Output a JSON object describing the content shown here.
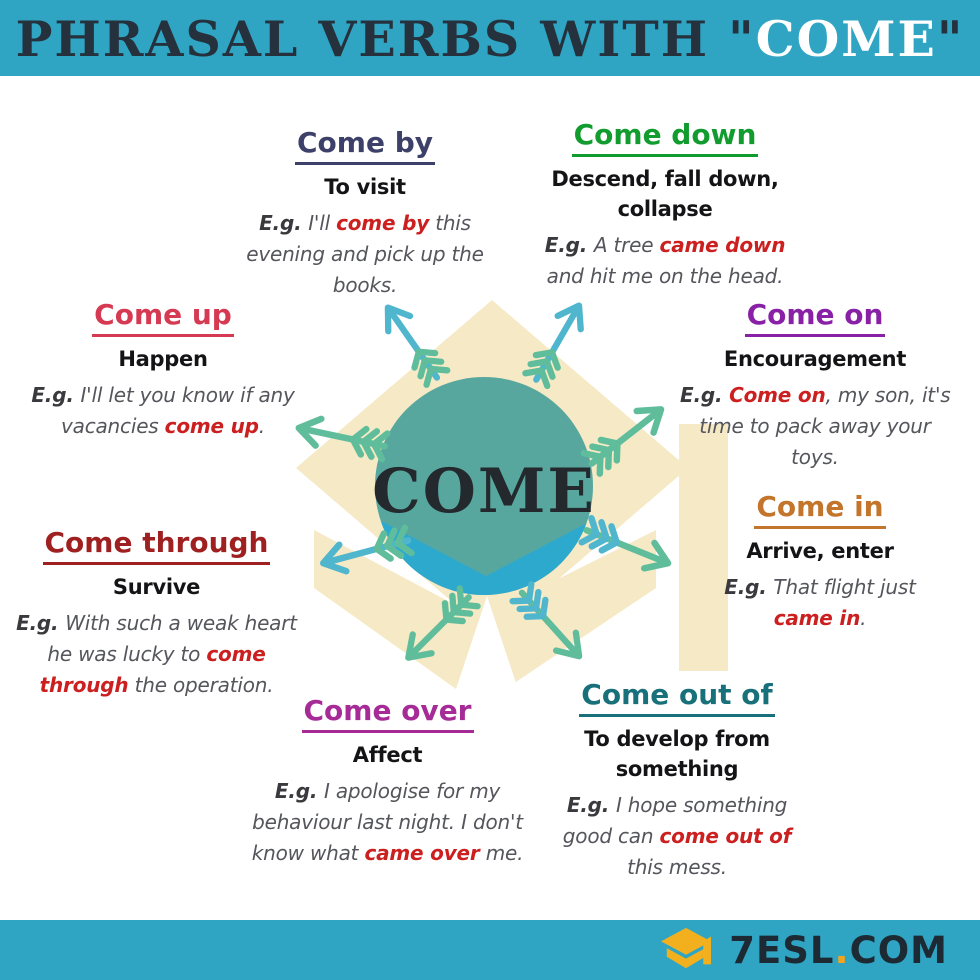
{
  "header": {
    "background": "#2fa5c3",
    "title_parts": [
      {
        "text": "PHRASAL VERBS WITH ",
        "color": "dark"
      },
      {
        "text": "\"",
        "color": "dark"
      },
      {
        "text": "COME",
        "color": "white"
      },
      {
        "text": "\"",
        "color": "dark"
      }
    ]
  },
  "center": {
    "label": "COME",
    "circle_color": "#58a79f",
    "chevron_color": "#2ea9ce",
    "watermark_color": "#f6e9c5",
    "arrow_teal": "#4fb6ce",
    "arrow_green": "#5fbd9b",
    "label_color": "#24292e",
    "graphic": "graduation-cap-watermark-with-radiating-arrows"
  },
  "sections": [
    {
      "id": "come-by",
      "title": "Come by",
      "title_color": "#3d4169",
      "definition_lines": [
        "To visit"
      ],
      "example_lines": [
        [
          {
            "t": "E.g. ",
            "s": "eg"
          },
          {
            "t": "I'll ",
            "s": "n"
          },
          {
            "t": "come by",
            "s": "hl"
          },
          {
            "t": " this",
            "s": "n"
          }
        ],
        [
          {
            "t": "evening and pick up the",
            "s": "n"
          }
        ],
        [
          {
            "t": "books.",
            "s": "n"
          }
        ]
      ]
    },
    {
      "id": "come-down",
      "title": "Come down",
      "title_color": "#129c2f",
      "definition_lines": [
        "Descend, fall down,",
        "collapse"
      ],
      "example_lines": [
        [
          {
            "t": "E.g. ",
            "s": "eg"
          },
          {
            "t": "A tree ",
            "s": "n"
          },
          {
            "t": "came down",
            "s": "hl"
          }
        ],
        [
          {
            "t": "and hit me on the head.",
            "s": "n"
          }
        ]
      ]
    },
    {
      "id": "come-up",
      "title": "Come up",
      "title_color": "#d63a53",
      "definition_lines": [
        "Happen"
      ],
      "example_lines": [
        [
          {
            "t": "E.g. ",
            "s": "eg"
          },
          {
            "t": "I'll let you know if any",
            "s": "n"
          }
        ],
        [
          {
            "t": "vacancies ",
            "s": "n"
          },
          {
            "t": "come up",
            "s": "hl"
          },
          {
            "t": ".",
            "s": "n"
          }
        ]
      ]
    },
    {
      "id": "come-on",
      "title": "Come on",
      "title_color": "#8921a6",
      "definition_lines": [
        "Encouragement"
      ],
      "example_lines": [
        [
          {
            "t": "E.g. ",
            "s": "eg"
          },
          {
            "t": "Come on",
            "s": "hl"
          },
          {
            "t": ", my son, it's",
            "s": "n"
          }
        ],
        [
          {
            "t": "time to pack away your",
            "s": "n"
          }
        ],
        [
          {
            "t": "toys.",
            "s": "n"
          }
        ]
      ]
    },
    {
      "id": "come-in",
      "title": "Come in",
      "title_color": "#c3752c",
      "definition_lines": [
        "Arrive, enter"
      ],
      "example_lines": [
        [
          {
            "t": "E.g. ",
            "s": "eg"
          },
          {
            "t": "That flight just",
            "s": "n"
          }
        ],
        [
          {
            "t": "came in",
            "s": "hl"
          },
          {
            "t": ".",
            "s": "n"
          }
        ]
      ]
    },
    {
      "id": "come-through",
      "title": "Come through",
      "title_color": "#9e2020",
      "definition_lines": [
        "Survive"
      ],
      "example_lines": [
        [
          {
            "t": "E.g. ",
            "s": "eg"
          },
          {
            "t": "With such a weak heart",
            "s": "n"
          }
        ],
        [
          {
            "t": "he was lucky to ",
            "s": "n"
          },
          {
            "t": "come",
            "s": "hl"
          }
        ],
        [
          {
            "t": "through",
            "s": "hl"
          },
          {
            "t": " the operation.",
            "s": "n"
          }
        ]
      ]
    },
    {
      "id": "come-over",
      "title": "Come over",
      "title_color": "#a62b97",
      "definition_lines": [
        "Affect"
      ],
      "example_lines": [
        [
          {
            "t": "E.g. ",
            "s": "eg"
          },
          {
            "t": "I apologise for my",
            "s": "n"
          }
        ],
        [
          {
            "t": "behaviour last night. I don't",
            "s": "n"
          }
        ],
        [
          {
            "t": "know what ",
            "s": "n"
          },
          {
            "t": "came over",
            "s": "hl"
          },
          {
            "t": " me.",
            "s": "n"
          }
        ]
      ]
    },
    {
      "id": "come-out-of",
      "title": "Come out of",
      "title_color": "#18707b",
      "definition_lines": [
        "To develop from",
        "something"
      ],
      "example_lines": [
        [
          {
            "t": "E.g. ",
            "s": "eg"
          },
          {
            "t": "I hope something",
            "s": "n"
          }
        ],
        [
          {
            "t": "good can ",
            "s": "n"
          },
          {
            "t": "come out of",
            "s": "hl"
          }
        ],
        [
          {
            "t": "this mess.",
            "s": "n"
          }
        ]
      ]
    }
  ],
  "footer": {
    "background": "#2fa5c3",
    "logo": "graduation-cap",
    "logo_color": "#f2b01e",
    "brand_parts": [
      {
        "text": "7ESL",
        "color": "dark2"
      },
      {
        "text": ".",
        "color": "orange"
      },
      {
        "text": "COM",
        "color": "dark2"
      }
    ]
  }
}
